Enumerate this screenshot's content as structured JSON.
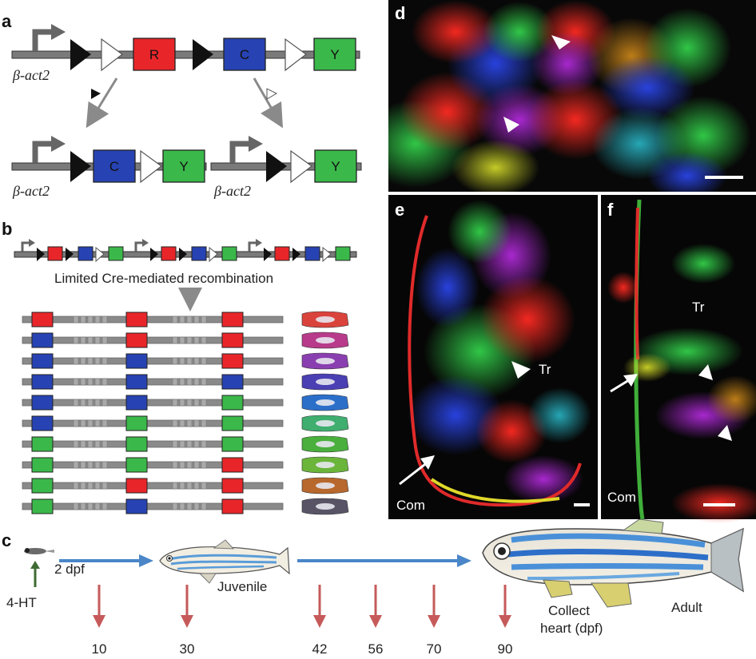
{
  "panels": {
    "a": "a",
    "b": "b",
    "c": "c",
    "d": "d",
    "e": "e",
    "f": "f"
  },
  "promoter": "β-act2",
  "cassettes": {
    "R": "R",
    "C": "C",
    "Y": "Y"
  },
  "b_caption": "Limited Cre-mediated recombination",
  "b_rows": [
    [
      "R",
      "R",
      "R"
    ],
    [
      "C",
      "R",
      "R"
    ],
    [
      "C",
      "C",
      "R"
    ],
    [
      "C",
      "C",
      "C"
    ],
    [
      "C",
      "C",
      "Y"
    ],
    [
      "C",
      "Y",
      "Y"
    ],
    [
      "Y",
      "Y",
      "Y"
    ],
    [
      "Y",
      "Y",
      "R"
    ],
    [
      "Y",
      "R",
      "R"
    ],
    [
      "Y",
      "C",
      "R"
    ]
  ],
  "b_row_colors": [
    "#d9433c",
    "#b83a8a",
    "#8a3fb0",
    "#4a3fb3",
    "#2c6fc9",
    "#3fae6e",
    "#4aaf3c",
    "#6ab53a",
    "#b8682c",
    "#585466"
  ],
  "colors": {
    "R": "#e8262a",
    "C": "#2743b3",
    "Y": "#3bb84a",
    "arrow_blue": "#4a86c8",
    "arrow_red": "#c65a5a",
    "arrow_green": "#3f6b33"
  },
  "timeline": {
    "treatment": "4-HT",
    "start": "2 dpf",
    "juvenile": "Juvenile",
    "adult": "Adult",
    "collect": "Collect",
    "collect2": "heart (dpf)",
    "days": [
      "10",
      "30",
      "42",
      "56",
      "70",
      "90"
    ]
  },
  "labels": {
    "com_e": "Com",
    "tr_e": "Tr",
    "com_f": "Com",
    "tr_f": "Tr"
  }
}
